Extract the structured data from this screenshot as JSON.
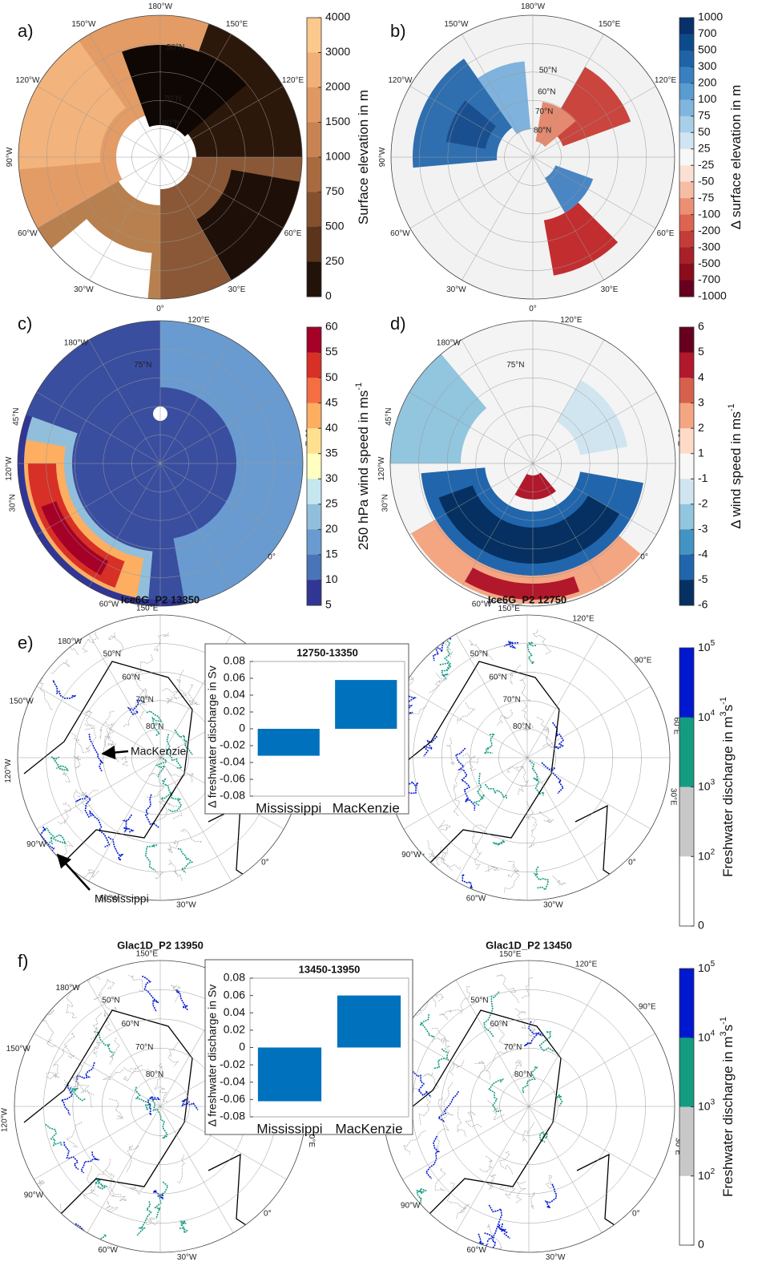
{
  "panels": [
    "a)",
    "b)",
    "c)",
    "d)",
    "e)",
    "f)"
  ],
  "maps": [
    {
      "labels": [
        "180°W",
        "150°W",
        "150°E",
        "120°W",
        "120°E",
        "90°W",
        "60°W",
        "60°E",
        "30°W",
        "30°E",
        "0°",
        "50°N",
        "70°N",
        "80°N"
      ]
    },
    {
      "labels": [
        "180°W",
        "150°W",
        "150°E",
        "120°W",
        "120°E",
        "90°W",
        "60°W",
        "60°E",
        "30°W",
        "30°E",
        "0°",
        "50°N",
        "60°N",
        "70°N",
        "80°N"
      ]
    },
    {
      "labels": [
        "180°W",
        "120°E",
        "60°E",
        "0°",
        "60°W",
        "30°N",
        "120°W",
        "45°N",
        "75°N"
      ]
    },
    {
      "labels": [
        "180°W",
        "120°E",
        "60°E",
        "0°",
        "60°W",
        "30°N",
        "120°W",
        "45°N",
        "75°N"
      ]
    },
    {
      "title": "Ice6G_P2 13350",
      "labels": [
        "150°E",
        "180°W",
        "150°W",
        "120°W",
        "90°W",
        "60°W",
        "30°W",
        "0°",
        "30°E",
        "60°E",
        "50°N",
        "60°N",
        "70°N",
        "80°N"
      ]
    },
    {
      "title": "Ice6G_P2 12750",
      "labels": [
        "150°E",
        "120°E",
        "90°E",
        "60°E",
        "30°E",
        "0°",
        "30°W",
        "60°W",
        "90°W",
        "50°N",
        "60°N",
        "70°N",
        "80°N"
      ]
    },
    {
      "title": "Glac1D_P2 13950",
      "labels": [
        "150°E",
        "180°W",
        "150°W",
        "120°W",
        "90°W",
        "60°W",
        "30°W",
        "0°",
        "30°E",
        "60°E",
        "50°N",
        "60°N",
        "70°N",
        "80°N"
      ]
    },
    {
      "title": "Glac1D_P2 13450",
      "labels": [
        "150°E",
        "120°E",
        "90°E",
        "60°E",
        "30°E",
        "0°",
        "30°W",
        "60°W",
        "90°W",
        "50°N",
        "60°N",
        "70°N",
        "80°N"
      ]
    }
  ],
  "annotations": [
    "MacKenzie",
    "Mississippi"
  ],
  "colorbars": [
    {
      "label": [
        "Surface elevation in m"
      ],
      "ticks": [
        4000,
        3000,
        2000,
        1500,
        1000,
        750,
        500,
        250,
        0
      ],
      "colors": [
        "#fcc98c",
        "#f1b078",
        "#df9864",
        "#c98352",
        "#a96a40",
        "#85502e",
        "#5a341c",
        "#22120a"
      ]
    },
    {
      "label": [
        "Δ surface elevation in m"
      ],
      "ticks": [
        1000,
        700,
        500,
        300,
        200,
        100,
        75,
        50,
        25,
        -25,
        -50,
        -75,
        -100,
        -200,
        -300,
        -500,
        -700,
        -1000
      ],
      "colors": [
        "#08306b",
        "#0d4a8c",
        "#1e63a8",
        "#3a7fbf",
        "#5a9bd0",
        "#80b6de",
        "#a8cfe8",
        "#d0e4f2",
        "#f7f7f7",
        "#fbe0d4",
        "#f6bca4",
        "#ec9074",
        "#dc6450",
        "#c43c38",
        "#a82028",
        "#8c0c1c",
        "#67001f"
      ]
    },
    {
      "label": [
        "250 hPa wind speed in ms",
        "-1"
      ],
      "ticks": [
        60,
        55,
        50,
        45,
        40,
        35,
        30,
        25,
        20,
        15,
        10,
        5
      ],
      "colors": [
        "#a50026",
        "#d73027",
        "#f46d43",
        "#fdae61",
        "#fee090",
        "#ffffbf",
        "#c6e6f0",
        "#91bfdb",
        "#6a9bd0",
        "#4a74b8",
        "#313695"
      ]
    },
    {
      "label": [
        "Δ wind speed in ms",
        "-1"
      ],
      "ticks": [
        6,
        5,
        4,
        3,
        2,
        1,
        -1,
        -2,
        -3,
        -4,
        -5,
        -6
      ],
      "colors": [
        "#67001f",
        "#b2182b",
        "#d6604d",
        "#f4a582",
        "#fddbc7",
        "#f7f7f7",
        "#d1e5f0",
        "#92c5de",
        "#4393c3",
        "#2166ac",
        "#053061"
      ]
    },
    {
      "label": [
        "Freshwater discharge in m",
        "3",
        "s",
        "-1"
      ],
      "ticks": [
        {
          "value": 100000,
          "label": "10",
          "sup": "5"
        },
        {
          "value": 10000,
          "label": "10",
          "sup": "4"
        },
        {
          "value": 1000,
          "label": "10",
          "sup": "3"
        },
        {
          "value": 100,
          "label": "10",
          "sup": "2"
        },
        0
      ],
      "colors": [
        "#0018d0",
        "#139c82",
        "#c8c8c8",
        "#ffffff"
      ]
    },
    {
      "label": [
        "Freshwater discharge in m",
        "3",
        "s",
        "-1"
      ],
      "ticks": [
        {
          "value": 100000,
          "label": "10",
          "sup": "5"
        },
        {
          "value": 10000,
          "label": "10",
          "sup": "4"
        },
        {
          "value": 1000,
          "label": "10",
          "sup": "3"
        },
        {
          "value": 100,
          "label": "10",
          "sup": "2"
        },
        0
      ],
      "colors": [
        "#0018d0",
        "#139c82",
        "#c8c8c8",
        "#ffffff"
      ]
    }
  ],
  "chart_data": [
    {
      "type": "bar",
      "title": "12750-13350",
      "y_label": "Δ freshwater discharge in Sv",
      "categories": [
        "Mississippi",
        "MacKenzie"
      ],
      "values": [
        -0.032,
        0.058
      ],
      "color": "#0072bd",
      "ylim": [
        -0.08,
        0.08
      ],
      "yticks": [
        -0.08,
        -0.06,
        -0.04,
        -0.02,
        0,
        0.02,
        0.04,
        0.06,
        0.08
      ],
      "grid": false
    },
    {
      "type": "bar",
      "title": "13450-13950",
      "y_label": "Δ freshwater discharge in Sv",
      "categories": [
        "Mississippi",
        "MacKenzie"
      ],
      "values": [
        -0.062,
        0.06
      ],
      "color": "#0072bd",
      "ylim": [
        -0.08,
        0.08
      ],
      "yticks": [
        -0.08,
        -0.06,
        -0.04,
        -0.02,
        0,
        0.02,
        0.04,
        0.06,
        0.08
      ],
      "grid": false
    }
  ]
}
